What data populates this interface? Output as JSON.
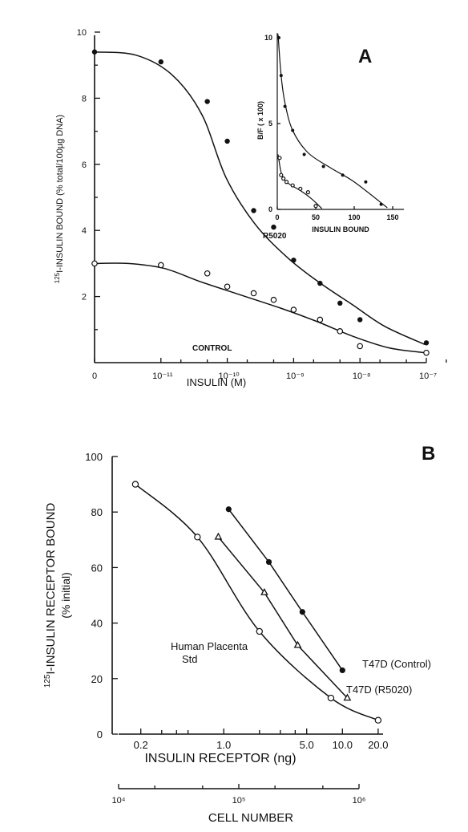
{
  "chart_data": [
    {
      "panel": "A",
      "type": "scatter",
      "x_scale": "log (0 at origin)",
      "xlabel": "INSULIN (M)",
      "ylabel": "125I-INSULIN BOUND (% total/100µg DNA)",
      "ylabel_sup": "125",
      "ylabel_text": "I-INSULIN BOUND (% total/100µg DNA)",
      "ylim": [
        0,
        10
      ],
      "x_ticks": [
        "0",
        "10⁻¹¹",
        "10⁻¹⁰",
        "10⁻⁹",
        "10⁻⁸",
        "10⁻⁷"
      ],
      "y_ticks": [
        "2",
        "4",
        "6",
        "8",
        "10"
      ],
      "series": [
        {
          "name": "R5020",
          "marker": "filled-circle",
          "points": [
            [
              0,
              9.4
            ],
            [
              1e-11,
              9.1
            ],
            [
              5e-11,
              7.9
            ],
            [
              1e-10,
              6.7
            ],
            [
              2.5e-10,
              4.6
            ],
            [
              5e-10,
              4.1
            ],
            [
              1e-09,
              3.1
            ],
            [
              2.5e-09,
              2.4
            ],
            [
              5e-09,
              1.8
            ],
            [
              1e-08,
              1.3
            ],
            [
              1e-07,
              0.6
            ]
          ]
        },
        {
          "name": "CONTROL",
          "marker": "open-circle",
          "points": [
            [
              0,
              3.0
            ],
            [
              1e-11,
              2.95
            ],
            [
              5e-11,
              2.7
            ],
            [
              1e-10,
              2.3
            ],
            [
              2.5e-10,
              2.1
            ],
            [
              5e-10,
              1.9
            ],
            [
              1e-09,
              1.6
            ],
            [
              2.5e-09,
              1.3
            ],
            [
              5e-09,
              0.95
            ],
            [
              1e-08,
              0.5
            ],
            [
              1e-07,
              0.3
            ]
          ]
        }
      ],
      "inset": {
        "type": "scatter",
        "xlabel": "INSULIN BOUND",
        "ylabel": "B/F ( x 100)",
        "xlim": [
          0,
          150
        ],
        "ylim": [
          0,
          10
        ],
        "x_ticks": [
          "0",
          "50",
          "100",
          "150"
        ],
        "y_ticks": [
          "0",
          "5",
          "10"
        ],
        "series": [
          {
            "marker": "filled-circle",
            "points": [
              [
                2,
                10
              ],
              [
                5,
                7.8
              ],
              [
                10,
                6
              ],
              [
                20,
                4.6
              ],
              [
                35,
                3.2
              ],
              [
                60,
                2.5
              ],
              [
                85,
                2
              ],
              [
                115,
                1.6
              ],
              [
                135,
                0.3
              ]
            ]
          },
          {
            "marker": "open-circle",
            "points": [
              [
                3,
                3
              ],
              [
                5,
                2
              ],
              [
                8,
                1.8
              ],
              [
                12,
                1.6
              ],
              [
                20,
                1.4
              ],
              [
                30,
                1.2
              ],
              [
                40,
                1
              ],
              [
                50,
                0.2
              ]
            ]
          }
        ]
      }
    },
    {
      "panel": "B",
      "type": "line",
      "x_scale": "log",
      "xlabel": "INSULIN RECEPTOR (ng)",
      "xlabel2": "CELL NUMBER",
      "ylabel": "125I-INSULIN RECEPTOR BOUND",
      "ylabel_sup": "125",
      "ylabel_text": "I-INSULIN RECEPTOR BOUND",
      "ylabel_sub": "(% initial)",
      "ylim": [
        0,
        100
      ],
      "y_ticks": [
        "0",
        "20",
        "40",
        "60",
        "80",
        "100"
      ],
      "x_ticks": [
        "0.2",
        "1.0",
        "5.0",
        "10.0",
        "20.0"
      ],
      "x2_ticks": [
        "10⁴",
        "10⁵",
        "10⁶"
      ],
      "series": [
        {
          "name": "Human Placenta Std",
          "name_lines": [
            "Human Placenta",
            "Std"
          ],
          "marker": "open-circle",
          "points": [
            [
              0.18,
              90
            ],
            [
              0.6,
              71
            ],
            [
              2.0,
              37
            ],
            [
              8.0,
              13
            ],
            [
              20.0,
              5
            ]
          ]
        },
        {
          "name": "T47D (R5020)",
          "marker": "open-triangle",
          "points": [
            [
              0.9,
              71
            ],
            [
              2.2,
              51
            ],
            [
              4.2,
              32
            ],
            [
              11.0,
              13
            ]
          ]
        },
        {
          "name": "T47D (Control)",
          "marker": "filled-circle",
          "points": [
            [
              1.1,
              81
            ],
            [
              2.4,
              62
            ],
            [
              4.6,
              44
            ],
            [
              10.0,
              23
            ]
          ]
        }
      ]
    }
  ]
}
